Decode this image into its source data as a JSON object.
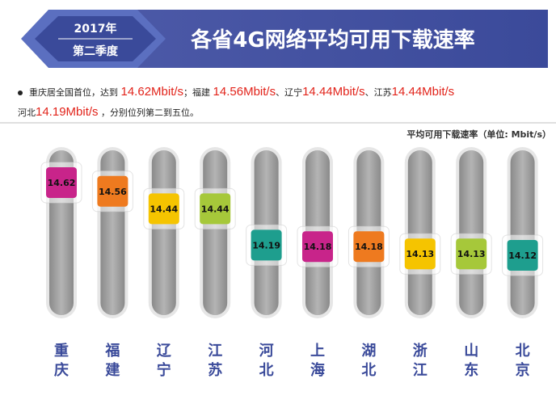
{
  "banner": {
    "year": "2017年",
    "quarter": "第二季度",
    "title": "各省4G网络平均可用下载速率"
  },
  "summary": {
    "seg1": "重庆居全国首位，达到",
    "v1": "14.62Mbit/s",
    "seg2": "；福建",
    "v2": "14.56Mbit/s",
    "seg3": "、辽宁",
    "v3": "14.44Mbit/s",
    "seg4": "、江苏",
    "v4": "14.44Mbit/s",
    "seg5": "河北",
    "v5": "14.19Mbit/s",
    "seg6": "，分别位列第二到五位。"
  },
  "chart_data": {
    "type": "bar",
    "ylabel": "平均可用下载速率（单位: Mbit/s）",
    "categories": [
      "重庆",
      "福建",
      "辽宁",
      "江苏",
      "河北",
      "上海",
      "湖北",
      "浙江",
      "山东",
      "北京"
    ],
    "values": [
      14.62,
      14.56,
      14.44,
      14.44,
      14.19,
      14.18,
      14.18,
      14.13,
      14.13,
      14.12
    ],
    "value_labels": [
      "14.62",
      "14.56",
      "14.44",
      "14.44",
      "14.19",
      "14.18",
      "14.18",
      "14.13",
      "14.13",
      "14.12"
    ],
    "colors": [
      "#c8248a",
      "#ee7a1f",
      "#f5c400",
      "#a6c83a",
      "#1e9e8e",
      "#c8248a",
      "#ee7a1f",
      "#f5c400",
      "#a6c83a",
      "#1e9e8e"
    ],
    "ylim": [
      14.12,
      14.62
    ],
    "grid": false,
    "legend": "none"
  }
}
